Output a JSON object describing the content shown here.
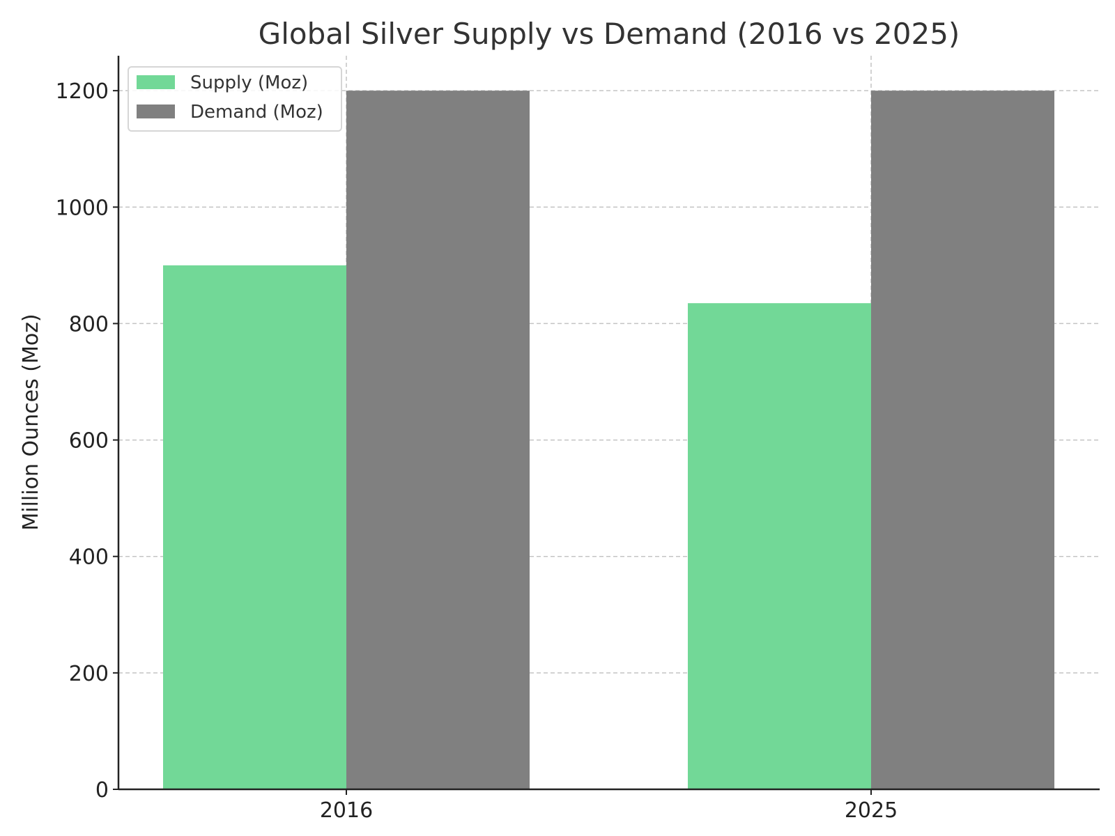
{
  "chart_data": {
    "type": "bar",
    "title": "Global Silver Supply vs Demand (2016 vs 2025)",
    "xlabel": "",
    "ylabel": "Million Ounces (Moz)",
    "categories": [
      "2016",
      "2025"
    ],
    "series": [
      {
        "name": "Supply (Moz)",
        "values": [
          900,
          835
        ],
        "color": "#72d897"
      },
      {
        "name": "Demand (Moz)",
        "values": [
          1200,
          1200
        ],
        "color": "#808080"
      }
    ],
    "ylim": [
      0,
      1260
    ],
    "yticks": [
      0,
      200,
      400,
      600,
      800,
      1000,
      1200
    ],
    "grid": true,
    "legend_position": "top-left"
  }
}
